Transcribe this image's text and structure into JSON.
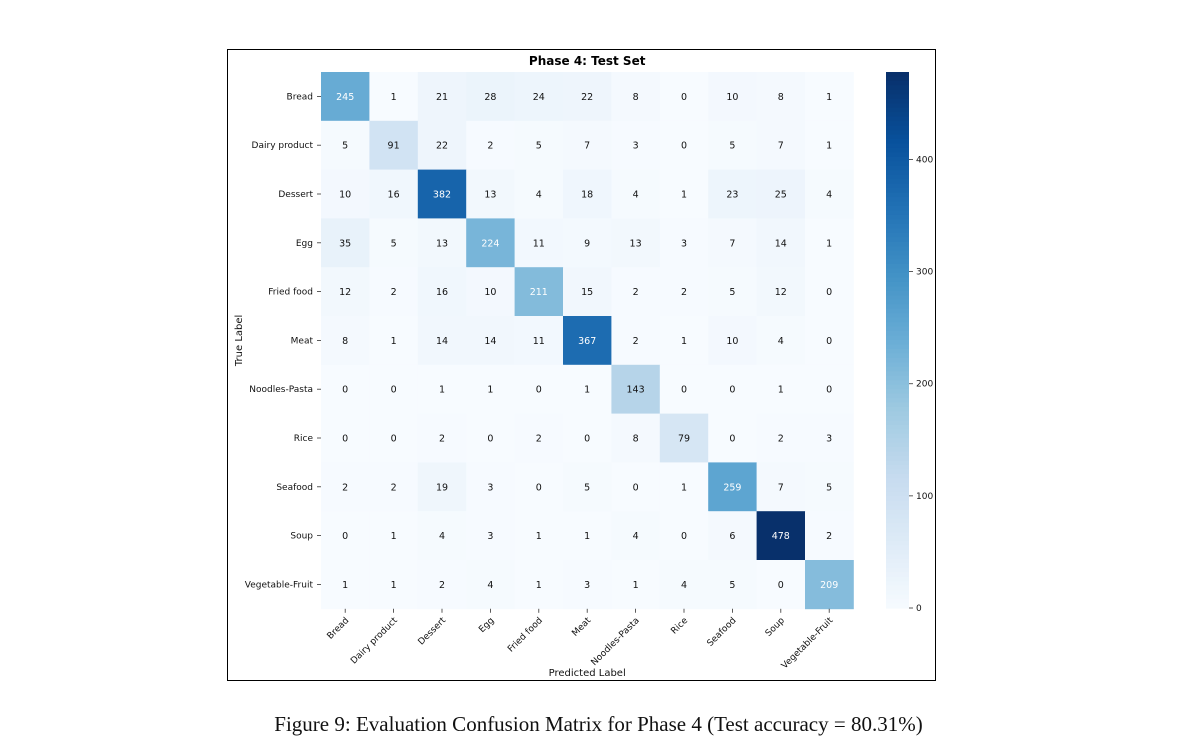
{
  "caption": "Figure 9: Evaluation Confusion Matrix for Phase 4 (Test accuracy = 80.31%)",
  "chart_data": {
    "type": "heatmap",
    "title": "Phase 4: Test Set",
    "xlabel": "Predicted Label",
    "ylabel": "True Label",
    "labels": [
      "Bread",
      "Dairy product",
      "Dessert",
      "Egg",
      "Fried food",
      "Meat",
      "Noodles-Pasta",
      "Rice",
      "Seafood",
      "Soup",
      "Vegetable-Fruit"
    ],
    "matrix": [
      [
        245,
        1,
        21,
        28,
        24,
        22,
        8,
        0,
        10,
        8,
        1
      ],
      [
        5,
        91,
        22,
        2,
        5,
        7,
        3,
        0,
        5,
        7,
        1
      ],
      [
        10,
        16,
        382,
        13,
        4,
        18,
        4,
        1,
        23,
        25,
        4
      ],
      [
        35,
        5,
        13,
        224,
        11,
        9,
        13,
        3,
        7,
        14,
        1
      ],
      [
        12,
        2,
        16,
        10,
        211,
        15,
        2,
        2,
        5,
        12,
        0
      ],
      [
        8,
        1,
        14,
        14,
        11,
        367,
        2,
        1,
        10,
        4,
        0
      ],
      [
        0,
        0,
        1,
        1,
        0,
        1,
        143,
        0,
        0,
        1,
        0
      ],
      [
        0,
        0,
        2,
        0,
        2,
        0,
        8,
        79,
        0,
        2,
        3
      ],
      [
        2,
        2,
        19,
        3,
        0,
        5,
        0,
        1,
        259,
        7,
        5
      ],
      [
        0,
        1,
        4,
        3,
        1,
        1,
        4,
        0,
        6,
        478,
        2
      ],
      [
        1,
        1,
        2,
        4,
        1,
        3,
        1,
        4,
        5,
        0,
        209
      ]
    ],
    "colorbar": {
      "min": 0,
      "max": 478,
      "ticks": [
        0,
        100,
        200,
        300,
        400
      ],
      "colormap": "Blues"
    },
    "colors": {
      "low": "#f7fbff",
      "high": "#08306b"
    }
  }
}
